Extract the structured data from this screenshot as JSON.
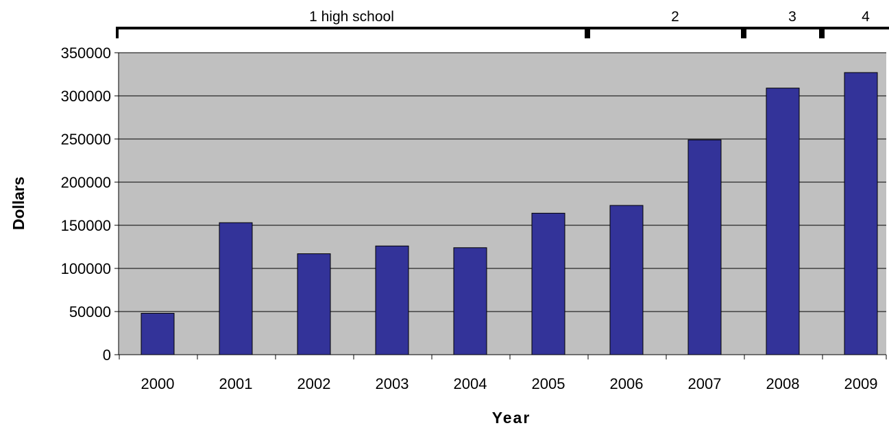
{
  "chart_data": {
    "type": "bar",
    "title": "",
    "xlabel": "Year",
    "ylabel": "Dollars",
    "categories": [
      "2000",
      "2001",
      "2002",
      "2003",
      "2004",
      "2005",
      "2006",
      "2007",
      "2008",
      "2009"
    ],
    "values": [
      48000,
      153000,
      117000,
      126000,
      124000,
      164000,
      173000,
      249000,
      309000,
      327000
    ],
    "ylim": [
      0,
      350000
    ],
    "yticks": [
      "0",
      "50000",
      "100000",
      "150000",
      "200000",
      "250000",
      "300000",
      "350000"
    ],
    "grid": true,
    "plot_background": "#c0c0c0",
    "bar_color": "#333399",
    "annotations": [
      {
        "label": "1 high school",
        "from": "2000",
        "to": "2006"
      },
      {
        "label": "2",
        "from": "2006",
        "to": "2008"
      },
      {
        "label": "3",
        "from": "2008",
        "to": "2009"
      },
      {
        "label": "4",
        "from": "2009",
        "to": "2009"
      }
    ]
  }
}
